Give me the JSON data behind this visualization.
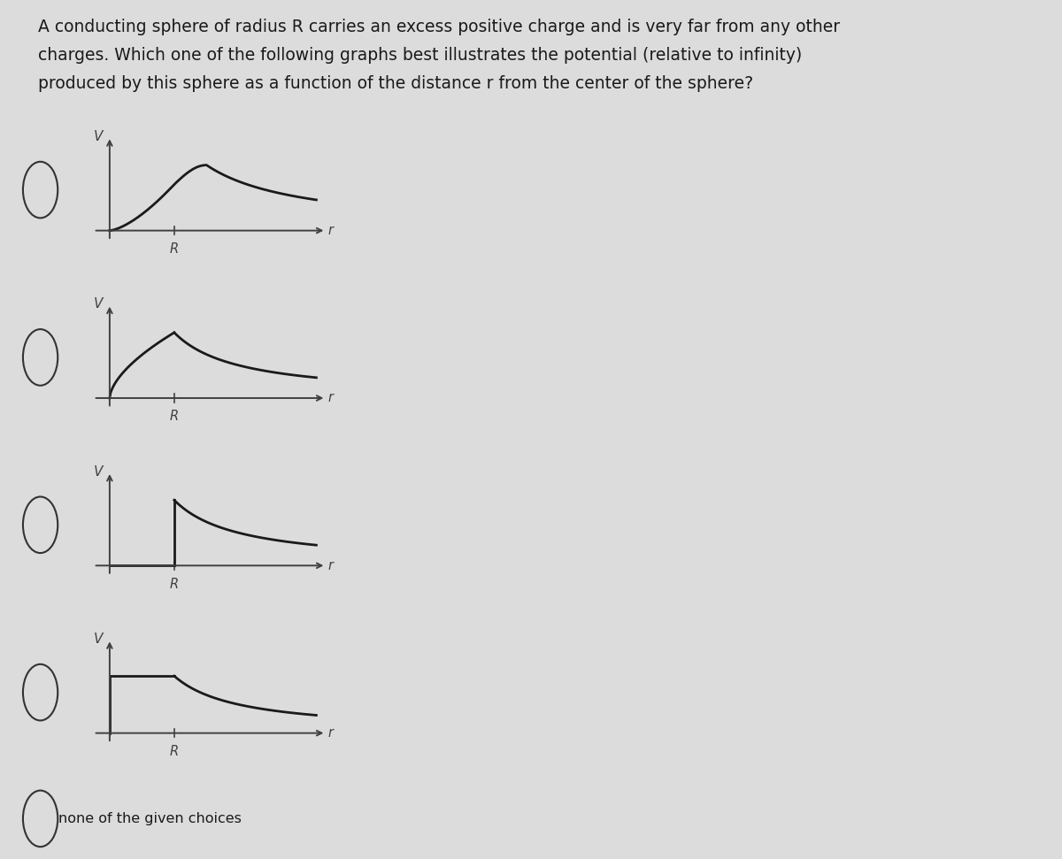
{
  "title_line1": "A conducting sphere of radius R carries an excess positive charge and is very far from any other",
  "title_line2": "charges. Which one of the following graphs best illustrates the potential (relative to infinity)",
  "title_line3": "produced by this sphere as a function of the distance r from the center of the sphere?",
  "background_color": "#dcdcdc",
  "line_color": "#1a1a1a",
  "axis_color": "#404040",
  "radio_color": "#333333",
  "none_text": "none of the given choices",
  "separator_color": "#b0b0b0",
  "title_fontsize": 13.5,
  "graph_label_fontsize": 11,
  "tick_label_fontsize": 10.5,
  "none_fontsize": 11.5
}
